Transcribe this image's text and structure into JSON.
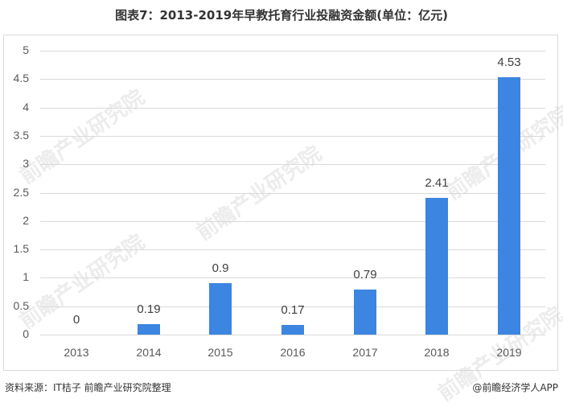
{
  "title": "图表7：2013-2019年早教托育行业投融资金额(单位：亿元)",
  "footer": {
    "source": "资料来源：IT桔子 前瞻产业研究院整理",
    "credit": "@前瞻经济学人APP"
  },
  "watermark": "前瞻产业研究院",
  "colors": {
    "bar": "#3c85e0",
    "grid": "#d9d9d9",
    "text": "#595959"
  },
  "yticks": [
    "0",
    "0.5",
    "1",
    "1.5",
    "2",
    "2.5",
    "3",
    "3.5",
    "4",
    "4.5",
    "5"
  ],
  "chart_data": {
    "type": "bar",
    "title": "图表7：2013-2019年早教托育行业投融资金额(单位：亿元)",
    "categories": [
      "2013",
      "2014",
      "2015",
      "2016",
      "2017",
      "2018",
      "2019"
    ],
    "values": [
      0,
      0.19,
      0.9,
      0.17,
      0.79,
      2.41,
      4.53
    ],
    "data_labels": [
      "0",
      "0.19",
      "0.9",
      "0.17",
      "0.79",
      "2.41",
      "4.53"
    ],
    "xlabel": "",
    "ylabel": "亿元",
    "ylim": [
      0,
      5
    ],
    "ytick_step": 0.5,
    "grid": true,
    "legend": null,
    "source": "资料来源：IT桔子 前瞻产业研究院整理"
  }
}
